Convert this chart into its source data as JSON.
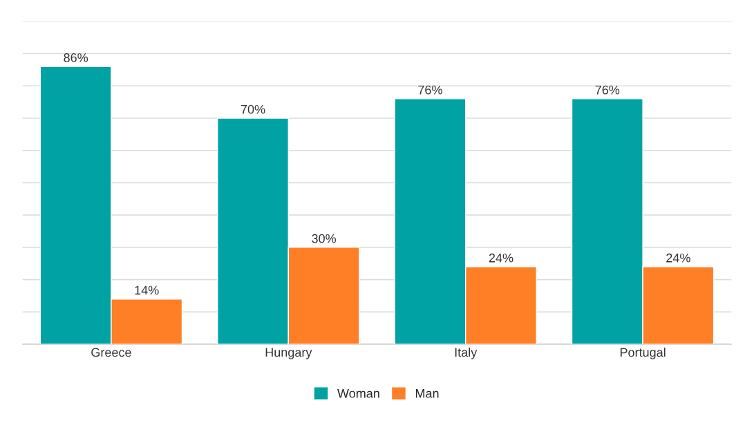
{
  "chart_data": {
    "type": "bar",
    "categories": [
      "Greece",
      "Hungary",
      "Italy",
      "Portugal"
    ],
    "series": [
      {
        "name": "Woman",
        "color": "#00a2a3",
        "values": [
          86,
          70,
          76,
          76
        ],
        "value_labels": [
          "86%",
          "70%",
          "76%",
          "76%"
        ]
      },
      {
        "name": "Man",
        "color": "#ff7f27",
        "values": [
          14,
          30,
          24,
          24
        ],
        "value_labels": [
          "14%",
          "30%",
          "24%",
          "24%"
        ]
      }
    ],
    "ylim": [
      0,
      100
    ],
    "yticks": [
      {
        "value": 0,
        "label": null
      },
      {
        "value": 10,
        "label": null
      },
      {
        "value": 20,
        "label": null
      },
      {
        "value": 30,
        "label": null
      },
      {
        "value": 40,
        "label": null
      },
      {
        "value": 50,
        "label": null
      },
      {
        "value": 60,
        "label": null
      },
      {
        "value": 70,
        "label": null
      },
      {
        "value": 80,
        "label": null
      },
      {
        "value": 90,
        "label": null
      },
      {
        "value": 100,
        "label": null
      }
    ],
    "tick_labels": "x",
    "grid": "y",
    "legend": "bottom"
  }
}
